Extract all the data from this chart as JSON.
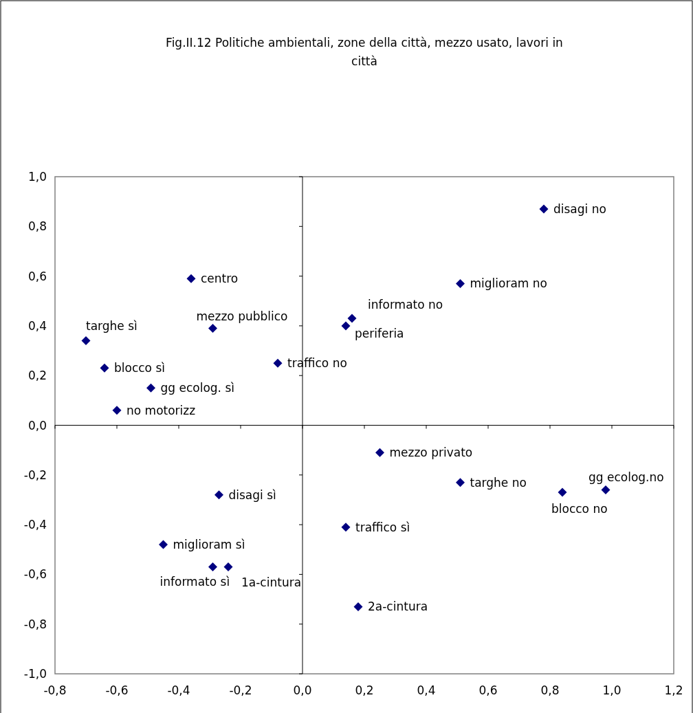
{
  "chart_data": {
    "type": "scatter",
    "title": "Fig.II.12 Politiche ambientali, zone della città, mezzo usato, lavori in città",
    "marker": "diamond",
    "xlim": [
      -0.8,
      1.2
    ],
    "ylim": [
      -1.0,
      1.0
    ],
    "xticks": [
      {
        "value": -0.8,
        "label": "-0,8"
      },
      {
        "value": -0.6,
        "label": "-0,6"
      },
      {
        "value": -0.4,
        "label": "-0,4"
      },
      {
        "value": -0.2,
        "label": "-0,2"
      },
      {
        "value": 0,
        "label": "0,0"
      },
      {
        "value": 0.2,
        "label": "0,2"
      },
      {
        "value": 0.4,
        "label": "0,4"
      },
      {
        "value": 0.6,
        "label": "0,6"
      },
      {
        "value": 0.8,
        "label": "0,8"
      },
      {
        "value": 1.0,
        "label": "1,0"
      },
      {
        "value": 1.2,
        "label": "1,2"
      }
    ],
    "yticks": [
      {
        "value": -1.0,
        "label": "-1,0"
      },
      {
        "value": -0.8,
        "label": "-0,8"
      },
      {
        "value": -0.6,
        "label": "-0,6"
      },
      {
        "value": -0.4,
        "label": "-0,4"
      },
      {
        "value": -0.2,
        "label": "-0,2"
      },
      {
        "value": 0,
        "label": "0,0"
      },
      {
        "value": 0.2,
        "label": "0,2"
      },
      {
        "value": 0.4,
        "label": "0,4"
      },
      {
        "value": 0.6,
        "label": "0,6"
      },
      {
        "value": 0.8,
        "label": "0,8"
      },
      {
        "value": 1.0,
        "label": "1,0"
      }
    ],
    "series": [
      {
        "name": "disagi no",
        "color": "#000080",
        "x": [
          0.78
        ],
        "values": [
          0.87
        ]
      },
      {
        "name": "miglioram no",
        "color": "#000080",
        "x": [
          0.51
        ],
        "values": [
          0.57
        ]
      },
      {
        "name": "informato no",
        "color": "#000080",
        "x": [
          0.16
        ],
        "values": [
          0.43
        ]
      },
      {
        "name": "periferia",
        "color": "#000080",
        "x": [
          0.14
        ],
        "values": [
          0.4
        ]
      },
      {
        "name": "centro",
        "color": "#000080",
        "x": [
          -0.36
        ],
        "values": [
          0.59
        ]
      },
      {
        "name": "mezzo pubblico",
        "color": "#000080",
        "x": [
          -0.29
        ],
        "values": [
          0.39
        ]
      },
      {
        "name": "targhe sì",
        "color": "#000080",
        "x": [
          -0.7
        ],
        "values": [
          0.34
        ]
      },
      {
        "name": "blocco sì",
        "color": "#000080",
        "x": [
          -0.64
        ],
        "values": [
          0.23
        ]
      },
      {
        "name": "gg ecolog. sì",
        "color": "#000080",
        "x": [
          -0.49
        ],
        "values": [
          0.15
        ]
      },
      {
        "name": "no motorizz",
        "color": "#000080",
        "x": [
          -0.6
        ],
        "values": [
          0.06
        ]
      },
      {
        "name": "traffico no",
        "color": "#000080",
        "x": [
          -0.08
        ],
        "values": [
          0.25
        ]
      },
      {
        "name": "mezzo privato",
        "color": "#000080",
        "x": [
          0.25
        ],
        "values": [
          -0.11
        ]
      },
      {
        "name": "targhe no",
        "color": "#000080",
        "x": [
          0.51
        ],
        "values": [
          -0.23
        ]
      },
      {
        "name": "blocco no",
        "color": "#000080",
        "x": [
          0.84
        ],
        "values": [
          -0.27
        ]
      },
      {
        "name": "gg ecolog.no",
        "color": "#000080",
        "x": [
          0.98
        ],
        "values": [
          -0.26
        ]
      },
      {
        "name": "disagi sì",
        "color": "#000080",
        "x": [
          -0.27
        ],
        "values": [
          -0.28
        ]
      },
      {
        "name": "miglioram sì",
        "color": "#000080",
        "x": [
          -0.45
        ],
        "values": [
          -0.48
        ]
      },
      {
        "name": "informato sì",
        "color": "#000080",
        "x": [
          -0.29
        ],
        "values": [
          -0.57
        ]
      },
      {
        "name": "1a-cintura",
        "color": "#000080",
        "x": [
          -0.24
        ],
        "values": [
          -0.57
        ]
      },
      {
        "name": "traffico sì",
        "color": "#000080",
        "x": [
          0.14
        ],
        "values": [
          -0.41
        ]
      },
      {
        "name": "2a-cintura",
        "color": "#000080",
        "x": [
          0.18
        ],
        "values": [
          -0.73
        ]
      }
    ]
  }
}
